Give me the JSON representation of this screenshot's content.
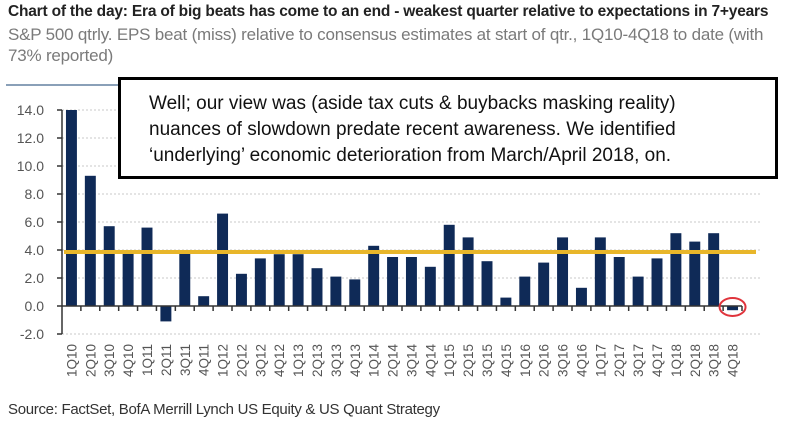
{
  "chart_data": {
    "type": "bar",
    "title": "Chart of the day: Era of big beats has come to an end - weakest quarter relative to expectations in 7+years",
    "subtitle": "S&P 500 qtrly. EPS beat (miss) relative to consensus estimates at start of qtr., 1Q10-4Q18 to date (with 73% reported)",
    "xlabel": "",
    "ylabel": "",
    "ylim": [
      -2.0,
      14.0
    ],
    "yticks": [
      "14.0",
      "12.0",
      "10.0",
      "8.0",
      "6.0",
      "4.0",
      "2.0",
      "0.0",
      "-2.0"
    ],
    "ytick_values": [
      14,
      12,
      10,
      8,
      6,
      4,
      2,
      0,
      -2
    ],
    "grid": true,
    "categories": [
      "1Q10",
      "2Q10",
      "3Q10",
      "4Q10",
      "1Q11",
      "2Q11",
      "3Q11",
      "4Q11",
      "1Q12",
      "2Q12",
      "3Q12",
      "4Q12",
      "1Q13",
      "2Q13",
      "3Q13",
      "4Q13",
      "1Q14",
      "2Q14",
      "3Q14",
      "4Q14",
      "1Q15",
      "2Q15",
      "3Q15",
      "4Q15",
      "1Q16",
      "2Q16",
      "3Q16",
      "4Q16",
      "1Q17",
      "2Q17",
      "3Q17",
      "4Q17",
      "1Q18",
      "2Q18",
      "3Q18",
      "4Q18"
    ],
    "series": [
      {
        "name": "EPS beat (miss) %",
        "color": "#0f2a57",
        "values": [
          14.0,
          9.3,
          5.7,
          3.8,
          5.6,
          -1.1,
          4.0,
          0.7,
          6.6,
          2.3,
          3.4,
          3.7,
          3.7,
          2.7,
          2.1,
          1.9,
          4.3,
          3.5,
          3.5,
          2.8,
          5.8,
          4.9,
          3.2,
          0.6,
          2.1,
          3.1,
          4.9,
          1.3,
          4.9,
          3.5,
          2.1,
          3.4,
          5.2,
          4.6,
          5.2,
          -0.3
        ]
      }
    ],
    "average_line": {
      "name": "Average",
      "value": 3.86,
      "color": "#e8b62a"
    },
    "highlight": {
      "category": "4Q18",
      "marker": "red-circle",
      "color": "#e0343c"
    }
  },
  "annotation": {
    "lines": [
      "Well; our view was (aside tax cuts & buybacks masking reality)",
      "nuances of slowdown predate recent awareness. We identified",
      "‘underlying’ economic deterioration from March/April 2018, on."
    ]
  },
  "source": "Source: FactSet, BofA Merrill Lynch US Equity & US Quant Strategy"
}
